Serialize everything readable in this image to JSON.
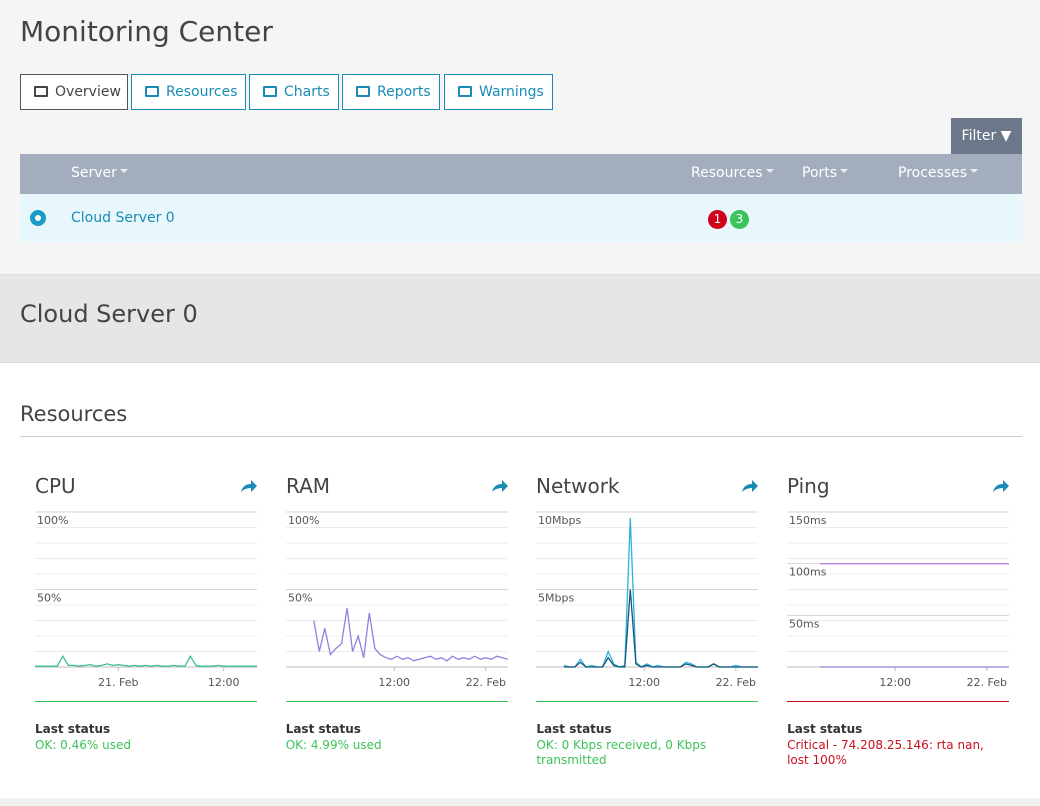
{
  "header": {
    "title": "Monitoring Center"
  },
  "tabs": [
    "Overview",
    "Resources",
    "Charts",
    "Reports",
    "Warnings"
  ],
  "filter": "Filter",
  "table": {
    "columns": [
      "Server",
      "Resources",
      "Ports",
      "Processes"
    ],
    "rows": [
      {
        "name": "Cloud Server 0",
        "alerts": [
          {
            "value": 1,
            "color": "#d0021b"
          },
          {
            "value": 3,
            "color": "#3cc35a"
          }
        ]
      }
    ]
  },
  "server": {
    "title": "Cloud Server 0"
  },
  "section": {
    "title": "Resources"
  },
  "status_label": "Last status",
  "chart_data": [
    {
      "type": "line",
      "title": "CPU",
      "xlim": [
        0,
        40
      ],
      "ylim": [
        0,
        100
      ],
      "yticks": [
        {
          "value": 50,
          "label": "50%"
        },
        {
          "value": 100,
          "label": "100%"
        }
      ],
      "xticks": [
        {
          "value": 15,
          "label": "21. Feb"
        },
        {
          "value": 34,
          "label": "12:00"
        }
      ],
      "series": [
        {
          "color": "#3cbf8c",
          "values": [
            0.5,
            0.5,
            0.5,
            0.5,
            0.5,
            7,
            1,
            1,
            0.5,
            1,
            1.5,
            0.5,
            1,
            2,
            1,
            1.5,
            1,
            0.5,
            1,
            0.5,
            1,
            0.5,
            1,
            0.5,
            0.5,
            1,
            0.5,
            0.5,
            7,
            1,
            0.5,
            0.5,
            0.5,
            1,
            0.5,
            0.5,
            0.5,
            0.5,
            0.5,
            0.5,
            0.5
          ]
        }
      ],
      "status": "OK: 0.46% used",
      "status_color": "#3cc35a"
    },
    {
      "type": "line",
      "title": "RAM",
      "xlim": [
        0,
        40
      ],
      "ylim": [
        0,
        100
      ],
      "yticks": [
        {
          "value": 50,
          "label": "50%"
        },
        {
          "value": 100,
          "label": "100%"
        }
      ],
      "xticks": [
        {
          "value": 19.5,
          "label": "12:00"
        },
        {
          "value": 36,
          "label": "22. Feb"
        }
      ],
      "series": [
        {
          "color": "#8a83e0",
          "values": [
            null,
            null,
            null,
            null,
            null,
            30,
            10,
            25,
            8,
            12,
            15,
            38,
            10,
            20,
            6,
            35,
            12,
            8,
            6,
            5,
            7,
            5,
            6,
            4,
            5,
            6,
            7,
            5,
            6,
            4,
            7,
            5,
            6,
            5,
            7,
            5,
            6,
            5,
            7,
            6,
            5
          ]
        }
      ],
      "status": "OK: 4.99% used",
      "status_color": "#3cc35a"
    },
    {
      "type": "line",
      "title": "Network",
      "xlim": [
        0,
        40
      ],
      "ylim": [
        0,
        10
      ],
      "yticks": [
        {
          "value": 5,
          "label": "5Mbps"
        },
        {
          "value": 10,
          "label": "10Mbps"
        }
      ],
      "xticks": [
        {
          "value": 19.5,
          "label": "12:00"
        },
        {
          "value": 36,
          "label": "22. Feb"
        }
      ],
      "series": [
        {
          "color": "#2bb3d9",
          "values": [
            null,
            null,
            null,
            null,
            null,
            0.1,
            0,
            0,
            0.5,
            0,
            0.1,
            0,
            0,
            1,
            0.2,
            0,
            0.1,
            9.6,
            0.3,
            0,
            0.2,
            0,
            0.1,
            0,
            0,
            0,
            0,
            0.3,
            0.2,
            0,
            0,
            0,
            0.2,
            0,
            0,
            0,
            0.1,
            0,
            0,
            0,
            0
          ]
        },
        {
          "color": "#17557a",
          "values": [
            null,
            null,
            null,
            null,
            null,
            0,
            0,
            0,
            0.3,
            0,
            0,
            0,
            0,
            0.6,
            0.1,
            0,
            0,
            5,
            0.2,
            0,
            0.1,
            0,
            0,
            0,
            0,
            0,
            0,
            0.2,
            0.1,
            0,
            0,
            0,
            0.2,
            0,
            0,
            0,
            0,
            0,
            0,
            0,
            0
          ]
        }
      ],
      "status": "OK: 0 Kbps received, 0 Kbps transmitted",
      "status_color": "#3cc35a"
    },
    {
      "type": "line",
      "title": "Ping",
      "xlim": [
        0,
        40
      ],
      "ylim": [
        0,
        150
      ],
      "yticks": [
        {
          "value": 50,
          "label": "50ms"
        },
        {
          "value": 100,
          "label": "100ms"
        },
        {
          "value": 150,
          "label": "150ms"
        }
      ],
      "xticks": [
        {
          "value": 19.5,
          "label": "12:00"
        },
        {
          "value": 36,
          "label": "22. Feb"
        }
      ],
      "series": [
        {
          "color": "#b77ee0",
          "values": [
            null,
            null,
            null,
            null,
            null,
            null,
            100,
            100,
            100,
            100,
            100,
            100,
            100,
            100,
            100,
            100,
            100,
            100,
            100,
            100,
            100,
            100,
            100,
            100,
            100,
            100,
            100,
            100,
            100,
            100,
            100,
            100,
            100,
            100,
            100,
            100,
            100,
            100,
            100,
            100,
            100
          ]
        },
        {
          "color": "#9a7fe0",
          "values": [
            null,
            null,
            null,
            null,
            null,
            null,
            0,
            0,
            0,
            0,
            0,
            0,
            0,
            0,
            0,
            0,
            0,
            0,
            0,
            0,
            0,
            0,
            0,
            0,
            0,
            0,
            0,
            0,
            0,
            0,
            0,
            0,
            0,
            0,
            0,
            0,
            0,
            0,
            0,
            0,
            0
          ]
        }
      ],
      "status": "Critical - 74.208.25.146: rta nan, lost 100%",
      "status_color": "#c8101e"
    }
  ]
}
